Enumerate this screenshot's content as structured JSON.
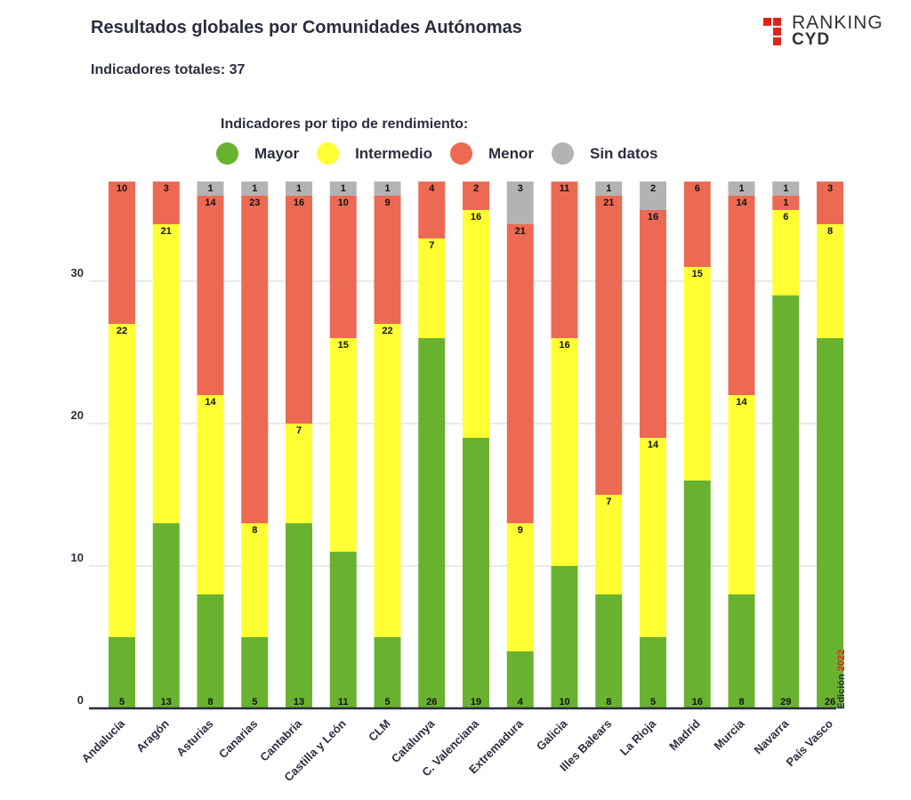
{
  "header": {
    "title": "Resultados globales por Comunidades Autónomas",
    "subtitle": "Indicadores totales: 37"
  },
  "logo": {
    "word1": "RANKING",
    "word2": "CYD"
  },
  "legend": {
    "title": "Indicadores por tipo de rendimiento:",
    "items": [
      {
        "label": "Mayor",
        "color": "#69b22f"
      },
      {
        "label": "Intermedio",
        "color": "#ffff33"
      },
      {
        "label": "Menor",
        "color": "#ec6a54"
      },
      {
        "label": "Sin datos",
        "color": "#b3b3b3"
      }
    ]
  },
  "edition": {
    "label": "Edición",
    "year": "2022"
  },
  "chart_data": {
    "type": "bar",
    "stacked": true,
    "title": "Resultados globales por Comunidades Autónomas",
    "categories": [
      "Andalucía",
      "Aragón",
      "Asturias",
      "Canarias",
      "Cantabria",
      "Castilla y León",
      "CLM",
      "Catalunya",
      "C. Valenciana",
      "Extremadura",
      "Galicia",
      "Illes Balears",
      "La Rioja",
      "Madrid",
      "Murcia",
      "Navarra",
      "País Vasco"
    ],
    "series": [
      {
        "name": "Mayor",
        "color": "#69b22f",
        "values": [
          5,
          13,
          8,
          5,
          13,
          11,
          5,
          26,
          19,
          4,
          10,
          8,
          5,
          16,
          8,
          29,
          26
        ]
      },
      {
        "name": "Intermedio",
        "color": "#ffff33",
        "values": [
          22,
          21,
          14,
          8,
          7,
          15,
          22,
          7,
          16,
          9,
          16,
          7,
          14,
          15,
          14,
          6,
          8
        ]
      },
      {
        "name": "Menor",
        "color": "#ec6a54",
        "values": [
          10,
          3,
          14,
          23,
          16,
          10,
          9,
          4,
          2,
          21,
          11,
          21,
          16,
          6,
          14,
          1,
          3
        ]
      },
      {
        "name": "Sin datos",
        "color": "#b3b3b3",
        "values": [
          0,
          0,
          1,
          1,
          1,
          1,
          1,
          0,
          0,
          3,
          0,
          1,
          2,
          0,
          1,
          1,
          0
        ]
      }
    ],
    "yticks": [
      0,
      10,
      20,
      30
    ],
    "ylim": [
      0,
      37
    ],
    "grid": true,
    "legend": "top"
  }
}
